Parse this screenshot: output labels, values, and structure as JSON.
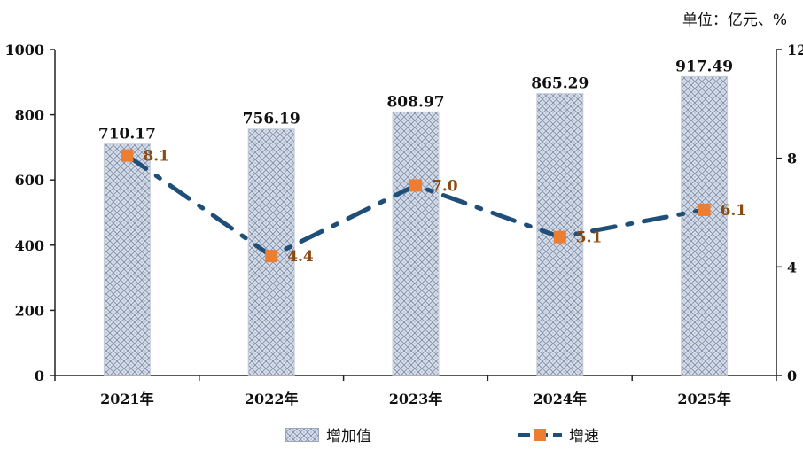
{
  "unit": "单位：亿元、%",
  "chart_data": {
    "type": "bar",
    "categories": [
      "2021年",
      "2022年",
      "2023年",
      "2024年",
      "2025年"
    ],
    "series": [
      {
        "name": "增加值",
        "type": "bar",
        "axis": "left",
        "values": [
          710.17,
          756.19,
          808.97,
          865.29,
          917.49
        ]
      },
      {
        "name": "增速",
        "type": "line",
        "axis": "right",
        "values": [
          8.1,
          4.4,
          7.0,
          5.1,
          6.1
        ]
      }
    ],
    "bar_labels": [
      "710.17",
      "756.19",
      "808.97",
      "865.29",
      "917.49"
    ],
    "line_labels": [
      "8.1",
      "4.4",
      "7.0",
      "5.1",
      "6.1"
    ],
    "y_left": {
      "min": 0,
      "max": 1000,
      "ticks": [
        "0",
        "200",
        "400",
        "600",
        "800",
        "1000"
      ]
    },
    "y_right": {
      "min": 0,
      "max": 12,
      "ticks": [
        "0",
        "4",
        "8",
        "12"
      ]
    },
    "legend": [
      "增加值",
      "增速"
    ],
    "legend_position": "bottom",
    "grid": false
  },
  "colors": {
    "bar_fill": "#c9d2e2",
    "bar_pattern": "#7f8ca6",
    "line": "#1f4e79",
    "marker": "#ed7d31",
    "point_label": "#8a4a12"
  }
}
